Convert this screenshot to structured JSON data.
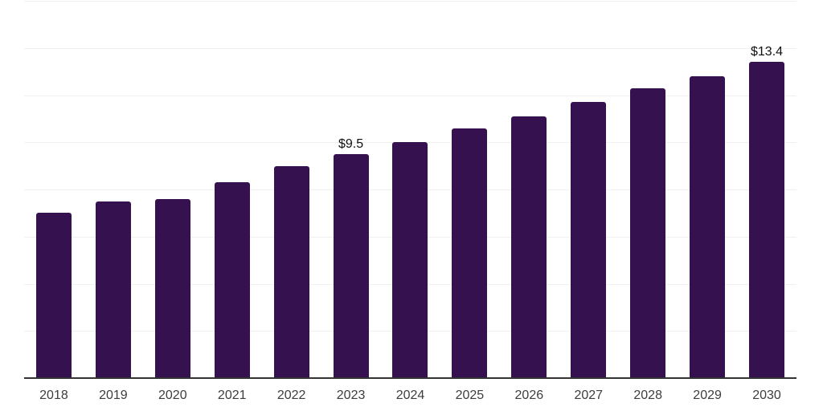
{
  "chart_data": {
    "type": "bar",
    "title": "",
    "xlabel": "",
    "ylabel": "",
    "categories": [
      "2018",
      "2019",
      "2020",
      "2021",
      "2022",
      "2023",
      "2024",
      "2025",
      "2026",
      "2027",
      "2028",
      "2029",
      "2030"
    ],
    "values": [
      7.0,
      7.5,
      7.6,
      8.3,
      9.0,
      9.5,
      10.0,
      10.6,
      11.1,
      11.7,
      12.3,
      12.8,
      13.4
    ],
    "data_labels": {
      "2023": "$9.5",
      "2030": "$13.4"
    },
    "ylim": [
      0,
      16
    ],
    "gridline_step": 2,
    "grid": "horizontal-only",
    "legend": "none",
    "colors": {
      "bar": "#35124F",
      "grid": "#F0F0F0",
      "axis": "#333333",
      "tick_text": "#3D3D3D",
      "data_label_text": "#111111",
      "background": "#FFFFFF"
    }
  }
}
